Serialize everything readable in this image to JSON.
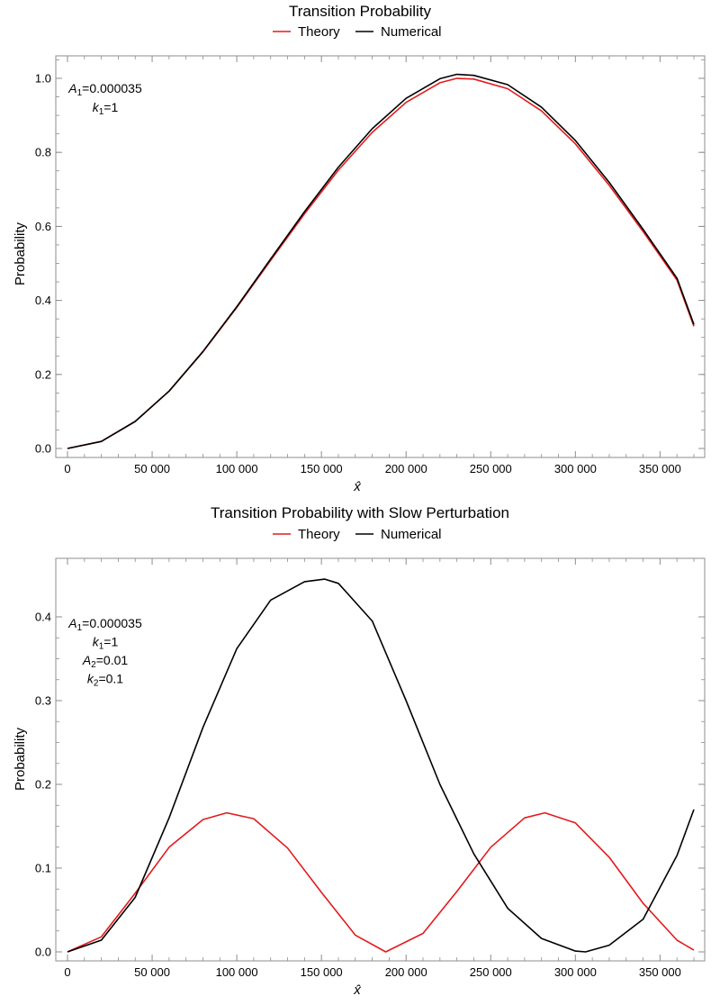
{
  "chart_data": [
    {
      "type": "line",
      "title": "Transition Probability",
      "xlabel": "x̂",
      "ylabel": "Probability",
      "xlim": [
        0,
        370000
      ],
      "ylim": [
        0,
        1.05
      ],
      "xticks": [
        50000,
        100000,
        150000,
        200000,
        250000,
        300000,
        350000
      ],
      "xtick_labels": [
        "50 000",
        "100 000",
        "150 000",
        "200 000",
        "250 000",
        "300 000",
        "350 000"
      ],
      "yticks": [
        0.0,
        0.2,
        0.4,
        0.6,
        0.8,
        1.0
      ],
      "ytick_labels": [
        "0.0",
        "0.2",
        "0.4",
        "0.6",
        "0.8",
        "1.0"
      ],
      "legend": {
        "position": "top-center"
      },
      "annotations": [
        {
          "var": "A",
          "sub": "1",
          "value": "=0.000035"
        },
        {
          "var": "k",
          "sub": "1",
          "value": "=1"
        }
      ],
      "series": [
        {
          "name": "Theory",
          "color": "#e41a1c",
          "x": [
            0,
            20000,
            40000,
            60000,
            80000,
            100000,
            120000,
            140000,
            160000,
            180000,
            200000,
            220000,
            230000,
            240000,
            260000,
            280000,
            300000,
            320000,
            340000,
            360000,
            370000
          ],
          "y": [
            0.0,
            0.019,
            0.073,
            0.155,
            0.261,
            0.381,
            0.508,
            0.634,
            0.752,
            0.854,
            0.935,
            0.988,
            1.0,
            0.998,
            0.972,
            0.912,
            0.823,
            0.711,
            0.586,
            0.455,
            0.33
          ]
        },
        {
          "name": "Numerical",
          "color": "#000000",
          "x": [
            0,
            20000,
            40000,
            60000,
            80000,
            100000,
            120000,
            140000,
            160000,
            180000,
            200000,
            220000,
            230000,
            240000,
            260000,
            280000,
            300000,
            320000,
            340000,
            360000,
            370000
          ],
          "y": [
            0.0,
            0.019,
            0.073,
            0.155,
            0.262,
            0.383,
            0.512,
            0.64,
            0.76,
            0.864,
            0.946,
            0.999,
            1.011,
            1.008,
            0.983,
            0.922,
            0.832,
            0.719,
            0.592,
            0.46,
            0.335
          ]
        }
      ]
    },
    {
      "type": "line",
      "title": "Transition Probability with Slow Perturbation",
      "xlabel": "x̂",
      "ylabel": "Probability",
      "xlim": [
        0,
        370000
      ],
      "ylim": [
        0,
        0.46
      ],
      "xticks": [
        50000,
        100000,
        150000,
        200000,
        250000,
        300000,
        350000
      ],
      "xtick_labels": [
        "50 000",
        "100 000",
        "150 000",
        "200 000",
        "250 000",
        "300 000",
        "350 000"
      ],
      "yticks": [
        0.0,
        0.1,
        0.2,
        0.3,
        0.4
      ],
      "ytick_labels": [
        "0.0",
        "0.1",
        "0.2",
        "0.3",
        "0.4"
      ],
      "legend": {
        "position": "top-center"
      },
      "annotations": [
        {
          "var": "A",
          "sub": "1",
          "value": "=0.000035"
        },
        {
          "var": "k",
          "sub": "1",
          "value": "=1"
        },
        {
          "var": "A",
          "sub": "2",
          "value": "=0.01"
        },
        {
          "var": "k",
          "sub": "2",
          "value": "=0.1"
        }
      ],
      "series": [
        {
          "name": "Theory",
          "color": "#e41a1c",
          "x": [
            0,
            20000,
            40000,
            60000,
            80000,
            94000,
            110000,
            130000,
            150000,
            170000,
            188000,
            210000,
            230000,
            250000,
            270000,
            282000,
            300000,
            320000,
            340000,
            360000,
            370000
          ],
          "y": [
            0.0,
            0.018,
            0.07,
            0.125,
            0.158,
            0.166,
            0.159,
            0.124,
            0.071,
            0.02,
            0.0,
            0.022,
            0.072,
            0.125,
            0.16,
            0.166,
            0.154,
            0.113,
            0.058,
            0.014,
            0.002
          ]
        },
        {
          "name": "Numerical",
          "color": "#000000",
          "x": [
            0,
            20000,
            40000,
            60000,
            80000,
            100000,
            120000,
            140000,
            152000,
            160000,
            180000,
            200000,
            220000,
            240000,
            260000,
            280000,
            300000,
            306000,
            320000,
            340000,
            360000,
            370000
          ],
          "y": [
            0.0,
            0.014,
            0.065,
            0.16,
            0.268,
            0.362,
            0.42,
            0.442,
            0.445,
            0.44,
            0.395,
            0.3,
            0.2,
            0.117,
            0.052,
            0.016,
            0.001,
            0.0,
            0.008,
            0.039,
            0.115,
            0.17
          ]
        }
      ]
    }
  ]
}
